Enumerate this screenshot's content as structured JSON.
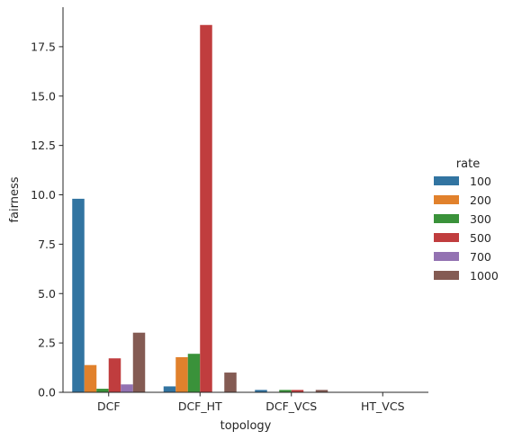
{
  "chart_data": {
    "type": "bar",
    "xlabel": "topology",
    "ylabel": "fairness",
    "categories": [
      "DCF",
      "DCF_HT",
      "DCF_VCS",
      "HT_VCS"
    ],
    "ylim": [
      0,
      19.5
    ],
    "yticks": [
      0.0,
      2.5,
      5.0,
      7.5,
      10.0,
      12.5,
      15.0,
      17.5
    ],
    "ytick_labels": [
      "0.0",
      "2.5",
      "5.0",
      "7.5",
      "10.0",
      "12.5",
      "15.0",
      "17.5"
    ],
    "legend": {
      "title": "rate",
      "placement": "right"
    },
    "grid": false,
    "series": [
      {
        "name": "100",
        "color": "#3274a1",
        "values": [
          9.8,
          0.3,
          0.12,
          0.0
        ]
      },
      {
        "name": "200",
        "color": "#e1812c",
        "values": [
          1.38,
          1.78,
          0.0,
          0.0
        ]
      },
      {
        "name": "300",
        "color": "#3a923a",
        "values": [
          0.18,
          1.95,
          0.12,
          0.0
        ]
      },
      {
        "name": "500",
        "color": "#c03d3e",
        "values": [
          1.72,
          18.6,
          0.12,
          0.0
        ]
      },
      {
        "name": "700",
        "color": "#9372b2",
        "values": [
          0.4,
          0.0,
          0.0,
          0.0
        ]
      },
      {
        "name": "1000",
        "color": "#845b53",
        "values": [
          3.02,
          1.0,
          0.12,
          0.0
        ]
      }
    ]
  }
}
